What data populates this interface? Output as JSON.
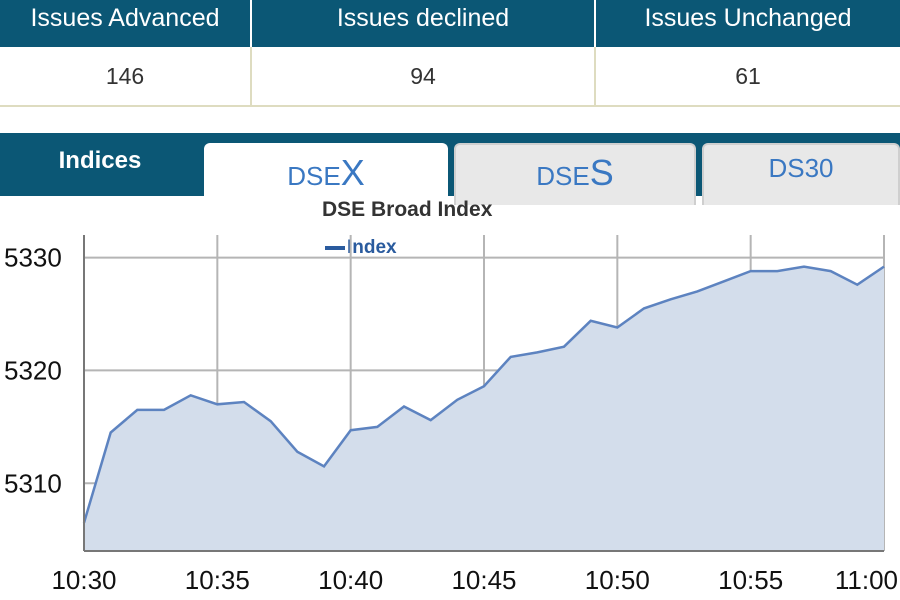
{
  "stats": {
    "headers": [
      "Issues Advanced",
      "Issues declined",
      "Issues Unchanged"
    ],
    "values": [
      "146",
      "94",
      "61"
    ]
  },
  "tabs": {
    "title": "Indices",
    "items": [
      {
        "prefix": "DSE",
        "suffix": "X",
        "active": true
      },
      {
        "prefix": "DSE",
        "suffix": "S",
        "active": false
      },
      {
        "label": "DS30",
        "active": false
      }
    ]
  },
  "chart_data": {
    "type": "area",
    "title": "DSE Broad Index",
    "legend": "Index",
    "legend_position": "top",
    "grid": true,
    "xlabel": "",
    "ylabel": "",
    "x_ticks": [
      "10:30",
      "10:35",
      "10:40",
      "10:45",
      "10:50",
      "10:55",
      "11:00"
    ],
    "y_ticks": [
      5310,
      5320,
      5330
    ],
    "xlim": [
      "10:30",
      "11:00"
    ],
    "ylim": [
      5304,
      5332
    ],
    "series": [
      {
        "name": "Index",
        "color": "#5d83c0",
        "fill": "#d3ddeb",
        "x": [
          "10:30",
          "10:31",
          "10:32",
          "10:33",
          "10:34",
          "10:35",
          "10:36",
          "10:37",
          "10:38",
          "10:39",
          "10:40",
          "10:41",
          "10:42",
          "10:43",
          "10:44",
          "10:45",
          "10:46",
          "10:47",
          "10:48",
          "10:49",
          "10:50",
          "10:51",
          "10:52",
          "10:53",
          "10:54",
          "10:55",
          "10:56",
          "10:57",
          "10:58",
          "10:59",
          "11:00"
        ],
        "values": [
          5306.5,
          5314.5,
          5316.5,
          5316.5,
          5317.8,
          5317.0,
          5317.2,
          5315.5,
          5312.8,
          5311.5,
          5314.7,
          5315.0,
          5316.8,
          5315.6,
          5317.4,
          5318.6,
          5321.2,
          5321.6,
          5322.1,
          5324.4,
          5323.8,
          5325.5,
          5326.3,
          5327.0,
          5327.9,
          5328.8,
          5328.8,
          5329.2,
          5328.8,
          5327.6,
          5329.2
        ]
      }
    ]
  }
}
